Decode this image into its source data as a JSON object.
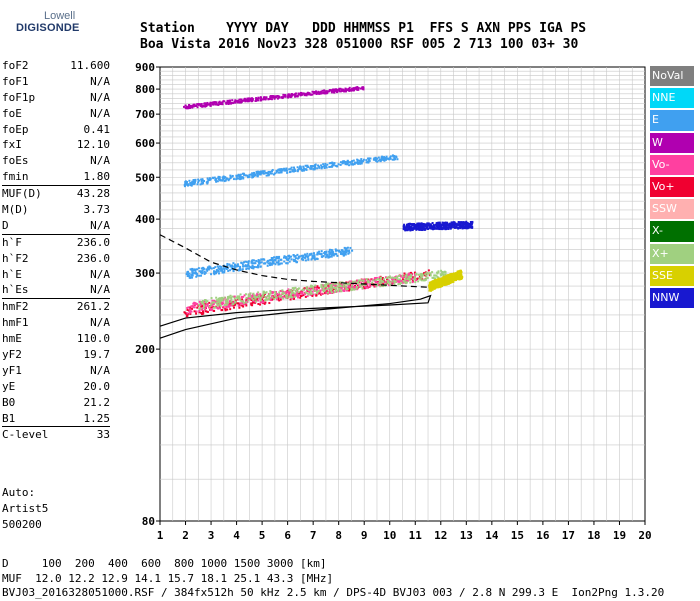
{
  "logo": {
    "line1": "Lowell",
    "line2": "DIGISONDE"
  },
  "header": {
    "labels": "Station    YYYY DAY   DDD HHMMSS P1  FFS S AXN PPS IGA PS",
    "values": "Boa Vista 2016 Nov23 328 051000 RSF 005 2 713 100 03+ 30"
  },
  "params": [
    {
      "name": "foF2",
      "value": "11.600"
    },
    {
      "name": "foF1",
      "value": "N/A"
    },
    {
      "name": "foF1p",
      "value": "N/A"
    },
    {
      "name": "foE",
      "value": "N/A"
    },
    {
      "name": "foEp",
      "value": "0.41"
    },
    {
      "name": "fxI",
      "value": "12.10"
    },
    {
      "name": "foEs",
      "value": "N/A"
    },
    {
      "name": "fmin",
      "value": "1.80"
    },
    {
      "name": "MUF(D)",
      "value": "43.28"
    },
    {
      "name": "M(D)",
      "value": "3.73"
    },
    {
      "name": "D",
      "value": "N/A"
    },
    {
      "name": "h`F",
      "value": "236.0"
    },
    {
      "name": "h`F2",
      "value": "236.0"
    },
    {
      "name": "h`E",
      "value": "N/A"
    },
    {
      "name": "h`Es",
      "value": "N/A"
    },
    {
      "name": "hmF2",
      "value": "261.2"
    },
    {
      "name": "hmF1",
      "value": "N/A"
    },
    {
      "name": "hmE",
      "value": "110.0"
    },
    {
      "name": "yF2",
      "value": "19.7"
    },
    {
      "name": "yF1",
      "value": "N/A"
    },
    {
      "name": "yE",
      "value": "20.0"
    },
    {
      "name": "B0",
      "value": "21.2"
    },
    {
      "name": "B1",
      "value": "1.25"
    },
    {
      "name": "C-level",
      "value": "33"
    }
  ],
  "auto": {
    "line1": "Auto:",
    "line2": "Artist5",
    "line3": "500200"
  },
  "footer": {
    "d_row": "D     100  200  400  600  800 1000 1500 3000 [km]",
    "muf_row": "MUF  12.0 12.2 12.9 14.1 15.7 18.1 25.1 43.3 [MHz]",
    "file_row": "BVJ03_2016328051000.RSF / 384fx512h 50 kHz 2.5 km / DPS-4D BVJ03 003 / 2.8 N 299.3 E  Ion2Png 1.3.20"
  },
  "legend": [
    {
      "label": "NoVal",
      "color": "#7f7f7f"
    },
    {
      "label": "NNE",
      "color": "#00d8f8"
    },
    {
      "label": "E",
      "color": "#40a0f0"
    },
    {
      "label": "W",
      "color": "#b000b0"
    },
    {
      "label": "Vo-",
      "color": "#ff40a0"
    },
    {
      "label": "Vo+",
      "color": "#f00030"
    },
    {
      "label": "SSW",
      "color": "#ffb0b0"
    },
    {
      "label": "X-",
      "color": "#007000"
    },
    {
      "label": "X+",
      "color": "#a0d080"
    },
    {
      "label": "SSE",
      "color": "#d8d000"
    },
    {
      "label": "NNW",
      "color": "#1818d0"
    }
  ],
  "chart_data": {
    "type": "scatter",
    "xlim": [
      1,
      20
    ],
    "ylim": [
      80,
      900
    ],
    "yscale": "log",
    "xticks": [
      "1",
      "2",
      "3",
      "4",
      "5",
      "6",
      "7",
      "8",
      "9",
      "10",
      "11",
      "12",
      "13",
      "14",
      "15",
      "16",
      "17",
      "18",
      "19",
      "20"
    ],
    "yticks": [
      {
        "value": 80,
        "label": "80"
      },
      {
        "value": 200,
        "label": "200"
      },
      {
        "value": 300,
        "label": "300"
      },
      {
        "value": 400,
        "label": "400"
      },
      {
        "value": 500,
        "label": "500"
      },
      {
        "value": 600,
        "label": "600"
      },
      {
        "value": 700,
        "label": "700"
      },
      {
        "value": 800,
        "label": "800"
      },
      {
        "value": 900,
        "label": "900"
      }
    ],
    "grid": true,
    "traces": [
      {
        "name": "o-trace F2 (Vo+)",
        "color": "#f00030",
        "x_range": [
          1.9,
          11.6
        ],
        "y_start": 245,
        "y_end": 300
      },
      {
        "name": "o-trace F2 (Vo-)",
        "color": "#ff40a0",
        "x_range": [
          2.0,
          11.0
        ],
        "y_start": 250,
        "y_end": 295
      },
      {
        "name": "F2 x-trace (X+)",
        "color": "#a0d080",
        "x_range": [
          2.5,
          12.3
        ],
        "y_start": 255,
        "y_end": 300
      },
      {
        "name": "F2 SSE",
        "color": "#d8d000",
        "x_range": [
          11.5,
          12.8
        ],
        "y_start": 280,
        "y_end": 300
      },
      {
        "name": "oblique NNW",
        "color": "#1818d0",
        "x_range": [
          10.5,
          13.2
        ],
        "y_start": 385,
        "y_end": 390
      },
      {
        "name": "E echoes",
        "color": "#40a0f0",
        "x_range": [
          2.0,
          8.5
        ],
        "y_start": 300,
        "y_end": 340
      },
      {
        "name": "2nd hop",
        "color": "#40a0f0",
        "x_range": [
          1.9,
          10.3
        ],
        "y_start": 485,
        "y_end": 560
      },
      {
        "name": "3rd hop",
        "color": "#b000b0",
        "x_range": [
          1.9,
          9.0
        ],
        "y_start": 730,
        "y_end": 810
      }
    ],
    "profile_curve": {
      "x": [
        1.0,
        2.0,
        4.0,
        6.0,
        8.0,
        10.0,
        11.2,
        11.6,
        11.5,
        10.0,
        8.0,
        6.0,
        4.0,
        2.0,
        1.0
      ],
      "y": [
        212,
        222,
        236,
        243,
        249,
        255,
        261,
        266,
        256,
        253,
        250,
        247,
        243,
        236,
        226
      ]
    },
    "dashed_curve": {
      "x": [
        1.0,
        2.0,
        3.0,
        4.0,
        5.0,
        6.0,
        7.0,
        8.0,
        9.0,
        10.0,
        11.6
      ],
      "y": [
        368,
        343,
        318,
        305,
        296,
        290,
        287,
        285,
        283,
        281,
        278
      ]
    }
  }
}
